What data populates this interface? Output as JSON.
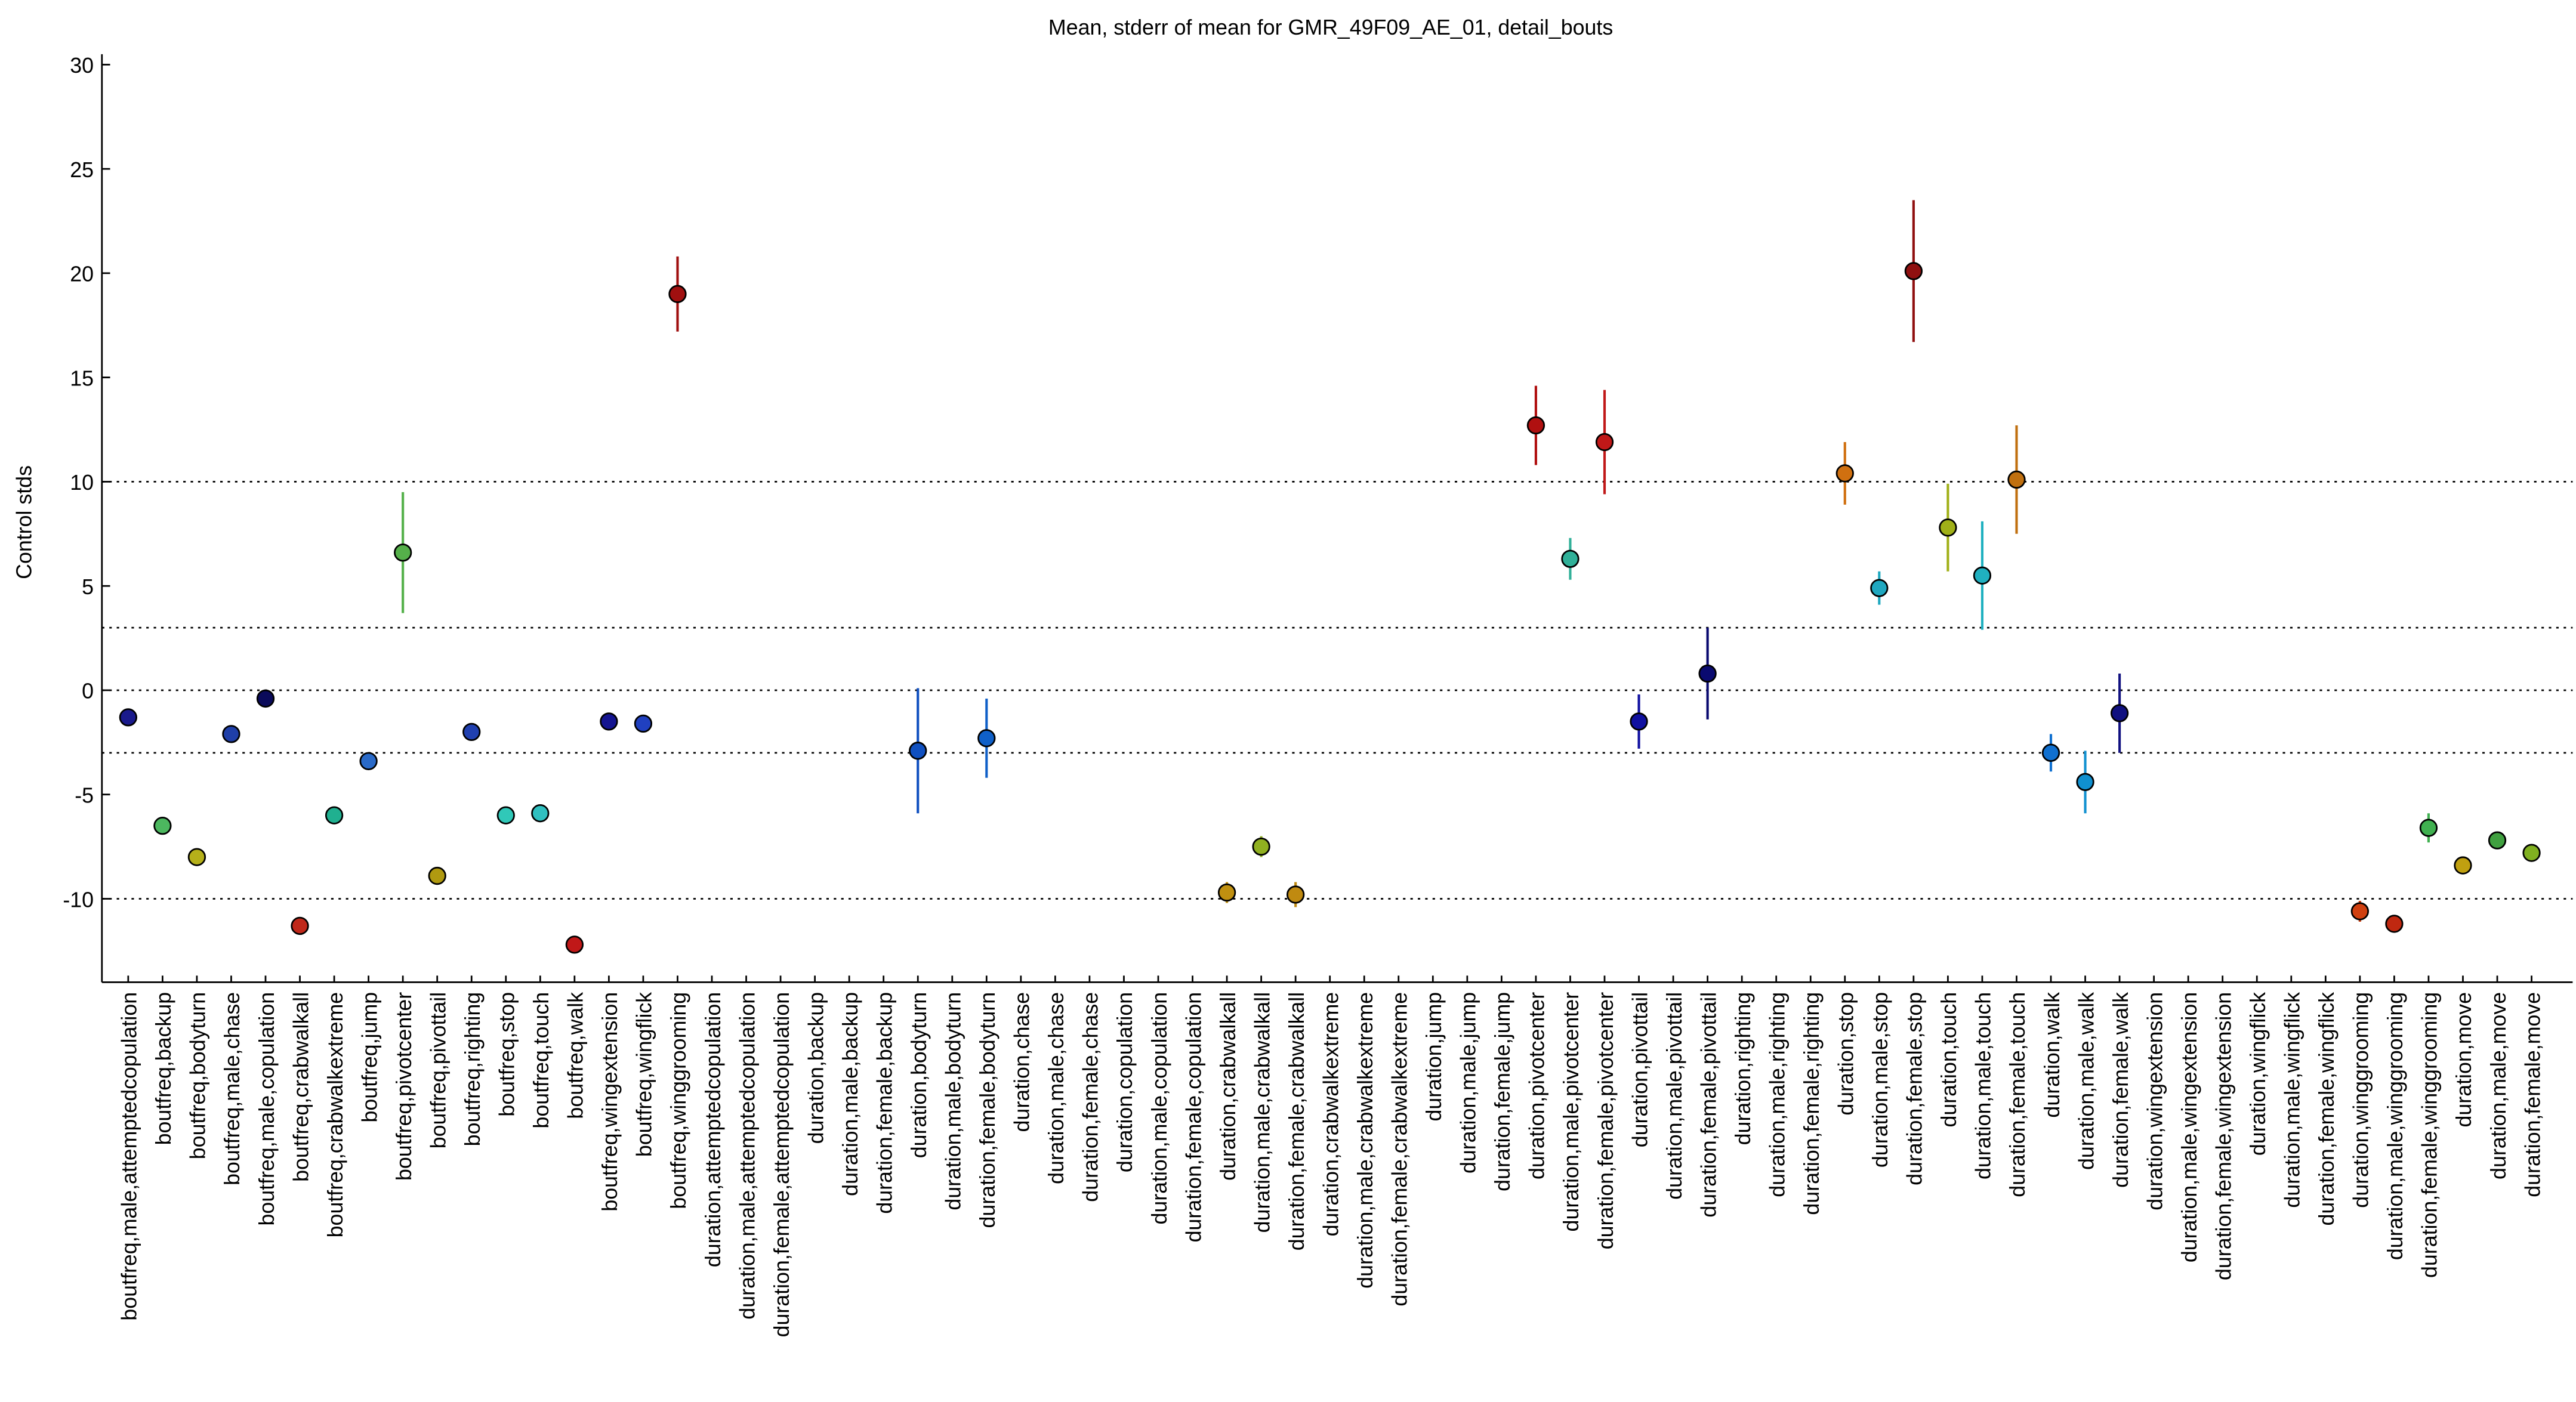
{
  "chart_data": {
    "type": "errorbar",
    "title": "Mean, stderr of mean for GMR_49F09_AE_01, detail_bouts",
    "ylabel": "Control stds",
    "categories": [
      "boutfreq,male,attemptedcopulation",
      "boutfreq,backup",
      "boutfreq,bodyturn",
      "boutfreq,male,chase",
      "boutfreq,male,copulation",
      "boutfreq,crabwalkall",
      "boutfreq,crabwalkextreme",
      "boutfreq,jump",
      "boutfreq,pivotcenter",
      "boutfreq,pivottail",
      "boutfreq,righting",
      "boutfreq,stop",
      "boutfreq,touch",
      "boutfreq,walk",
      "boutfreq,wingextension",
      "boutfreq,wingflick",
      "boutfreq,winggrooming",
      "duration,attemptedcopulation",
      "duration,male,attemptedcopulation",
      "duration,female,attemptedcopulation",
      "duration,backup",
      "duration,male,backup",
      "duration,female,backup",
      "duration,bodyturn",
      "duration,male,bodyturn",
      "duration,female,bodyturn",
      "duration,chase",
      "duration,male,chase",
      "duration,female,chase",
      "duration,copulation",
      "duration,male,copulation",
      "duration,female,copulation",
      "duration,crabwalkall",
      "duration,male,crabwalkall",
      "duration,female,crabwalkall",
      "duration,crabwalkextreme",
      "duration,male,crabwalkextreme",
      "duration,female,crabwalkextreme",
      "duration,jump",
      "duration,male,jump",
      "duration,female,jump",
      "duration,pivotcenter",
      "duration,male,pivotcenter",
      "duration,female,pivotcenter",
      "duration,pivottail",
      "duration,male,pivottail",
      "duration,female,pivottail",
      "duration,righting",
      "duration,male,righting",
      "duration,female,righting",
      "duration,stop",
      "duration,male,stop",
      "duration,female,stop",
      "duration,touch",
      "duration,male,touch",
      "duration,female,touch",
      "duration,walk",
      "duration,male,walk",
      "duration,female,walk",
      "duration,wingextension",
      "duration,male,wingextension",
      "duration,female,wingextension",
      "duration,wingflick",
      "duration,male,wingflick",
      "duration,female,wingflick",
      "duration,winggrooming",
      "duration,male,winggrooming",
      "duration,female,winggrooming",
      "duration,move",
      "duration,male,move",
      "duration,female,move"
    ],
    "values": [
      -1.3,
      -6.5,
      -8.0,
      -2.1,
      -0.4,
      -11.3,
      -6.0,
      -3.4,
      6.6,
      -8.9,
      -2.0,
      -6.0,
      -5.9,
      -12.2,
      -1.5,
      -1.6,
      19.0,
      null,
      null,
      null,
      null,
      null,
      null,
      -2.9,
      null,
      -2.3,
      null,
      null,
      null,
      null,
      null,
      null,
      -9.7,
      -7.5,
      -9.8,
      null,
      null,
      null,
      null,
      null,
      null,
      12.7,
      6.3,
      11.9,
      -1.5,
      null,
      0.8,
      null,
      null,
      null,
      10.4,
      4.9,
      20.1,
      7.8,
      5.5,
      10.1,
      -3.0,
      -4.4,
      -1.1,
      null,
      null,
      null,
      null,
      null,
      null,
      -10.6,
      -11.2,
      -6.6,
      -8.4,
      -7.2,
      -7.8
    ],
    "errors": [
      0.3,
      0.3,
      0.2,
      0.3,
      0.3,
      0.3,
      0.3,
      0.3,
      2.9,
      0.3,
      0.3,
      0.4,
      0.4,
      0.3,
      0.3,
      0.3,
      1.8,
      null,
      null,
      null,
      null,
      null,
      null,
      3.0,
      null,
      1.9,
      null,
      null,
      null,
      null,
      null,
      null,
      0.5,
      0.5,
      0.6,
      null,
      null,
      null,
      null,
      null,
      null,
      1.9,
      1.0,
      2.5,
      1.3,
      null,
      2.2,
      null,
      null,
      null,
      1.5,
      0.8,
      3.4,
      2.1,
      2.6,
      2.6,
      0.9,
      1.5,
      1.9,
      null,
      null,
      null,
      null,
      null,
      null,
      0.5,
      0.4,
      0.7,
      0.2,
      0.3,
      0.3
    ],
    "colors": [
      "#1a1a8c",
      "#4cb85f",
      "#b5b01a",
      "#1f3fa8",
      "#0a0a5a",
      "#c0281a",
      "#20b090",
      "#2a6ac8",
      "#55b04a",
      "#b09a10",
      "#2040b0",
      "#30c8b8",
      "#30c0c0",
      "#c01818",
      "#141490",
      "#2040c0",
      "#a01010",
      "#888888",
      "#888888",
      "#888888",
      "#888888",
      "#888888",
      "#888888",
      "#1050c0",
      "#888888",
      "#1060c8",
      "#888888",
      "#888888",
      "#888888",
      "#888888",
      "#888888",
      "#888888",
      "#c09010",
      "#90b020",
      "#c08a10",
      "#888888",
      "#888888",
      "#888888",
      "#888888",
      "#888888",
      "#888888",
      "#b01010",
      "#30b098",
      "#c01818",
      "#1010a0",
      "#888888",
      "#0a0a70",
      "#888888",
      "#888888",
      "#888888",
      "#d07010",
      "#20a8c0",
      "#901010",
      "#a0b018",
      "#20b0c0",
      "#c07010",
      "#1070d0",
      "#1090d0",
      "#101080",
      "#888888",
      "#888888",
      "#888888",
      "#888888",
      "#888888",
      "#888888",
      "#d04010",
      "#c02810",
      "#40b050",
      "#c0a010",
      "#40a040",
      "#80b020"
    ],
    "ylim": [
      -14,
      30.5
    ],
    "yticks": [
      -10,
      -5,
      0,
      5,
      10,
      15,
      20,
      25,
      30
    ],
    "hlines": [
      -10,
      -3,
      0,
      3,
      10
    ]
  }
}
